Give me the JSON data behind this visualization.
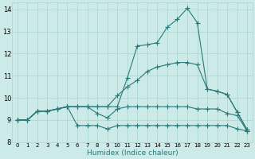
{
  "background_color": "#cceae7",
  "grid_color": "#aad4d0",
  "line_color": "#2a7a78",
  "xlabel": "Humidex (Indice chaleur)",
  "xlim": [
    -0.5,
    23.5
  ],
  "ylim": [
    8.0,
    14.3
  ],
  "yticks": [
    8,
    9,
    10,
    11,
    12,
    13,
    14
  ],
  "xticks": [
    0,
    1,
    2,
    3,
    4,
    5,
    6,
    7,
    8,
    9,
    10,
    11,
    12,
    13,
    14,
    15,
    16,
    17,
    18,
    19,
    20,
    21,
    22,
    23
  ],
  "line1_x": [
    0,
    1,
    2,
    3,
    4,
    5,
    6,
    7,
    8,
    9,
    10,
    11,
    12,
    13,
    14,
    15,
    16,
    17,
    18,
    19,
    20,
    21,
    22,
    23
  ],
  "line1_y": [
    9.0,
    9.0,
    9.4,
    9.4,
    9.5,
    9.6,
    8.75,
    8.75,
    8.75,
    8.6,
    8.75,
    8.75,
    8.75,
    8.75,
    8.75,
    8.75,
    8.75,
    8.75,
    8.75,
    8.75,
    8.75,
    8.75,
    8.6,
    8.5
  ],
  "line2_x": [
    0,
    1,
    2,
    3,
    4,
    5,
    6,
    7,
    8,
    9,
    10,
    11,
    12,
    13,
    14,
    15,
    16,
    17,
    18,
    19,
    20,
    21,
    22,
    23
  ],
  "line2_y": [
    9.0,
    9.0,
    9.4,
    9.4,
    9.5,
    9.6,
    9.6,
    9.6,
    9.3,
    9.1,
    9.5,
    9.6,
    9.6,
    9.6,
    9.6,
    9.6,
    9.6,
    9.6,
    9.5,
    9.5,
    9.5,
    9.3,
    9.2,
    8.5
  ],
  "line3_x": [
    0,
    1,
    2,
    3,
    4,
    5,
    6,
    7,
    8,
    9,
    10,
    11,
    12,
    13,
    14,
    15,
    16,
    17,
    18,
    19,
    20,
    21,
    22,
    23
  ],
  "line3_y": [
    9.0,
    9.0,
    9.4,
    9.4,
    9.5,
    9.6,
    9.6,
    9.6,
    9.6,
    9.6,
    10.1,
    10.5,
    10.8,
    11.2,
    11.4,
    11.5,
    11.6,
    11.6,
    11.5,
    10.4,
    10.3,
    10.15,
    9.35,
    8.55
  ],
  "line4_x": [
    0,
    1,
    2,
    3,
    4,
    5,
    6,
    7,
    8,
    9,
    10,
    11,
    12,
    13,
    14,
    15,
    16,
    17,
    18,
    19,
    20,
    21,
    22,
    23
  ],
  "line4_y": [
    9.0,
    9.0,
    9.4,
    9.4,
    9.5,
    9.6,
    9.6,
    9.6,
    9.6,
    9.6,
    9.6,
    10.9,
    12.35,
    12.4,
    12.5,
    13.2,
    13.55,
    14.05,
    13.4,
    10.4,
    10.3,
    10.15,
    9.35,
    8.55
  ]
}
